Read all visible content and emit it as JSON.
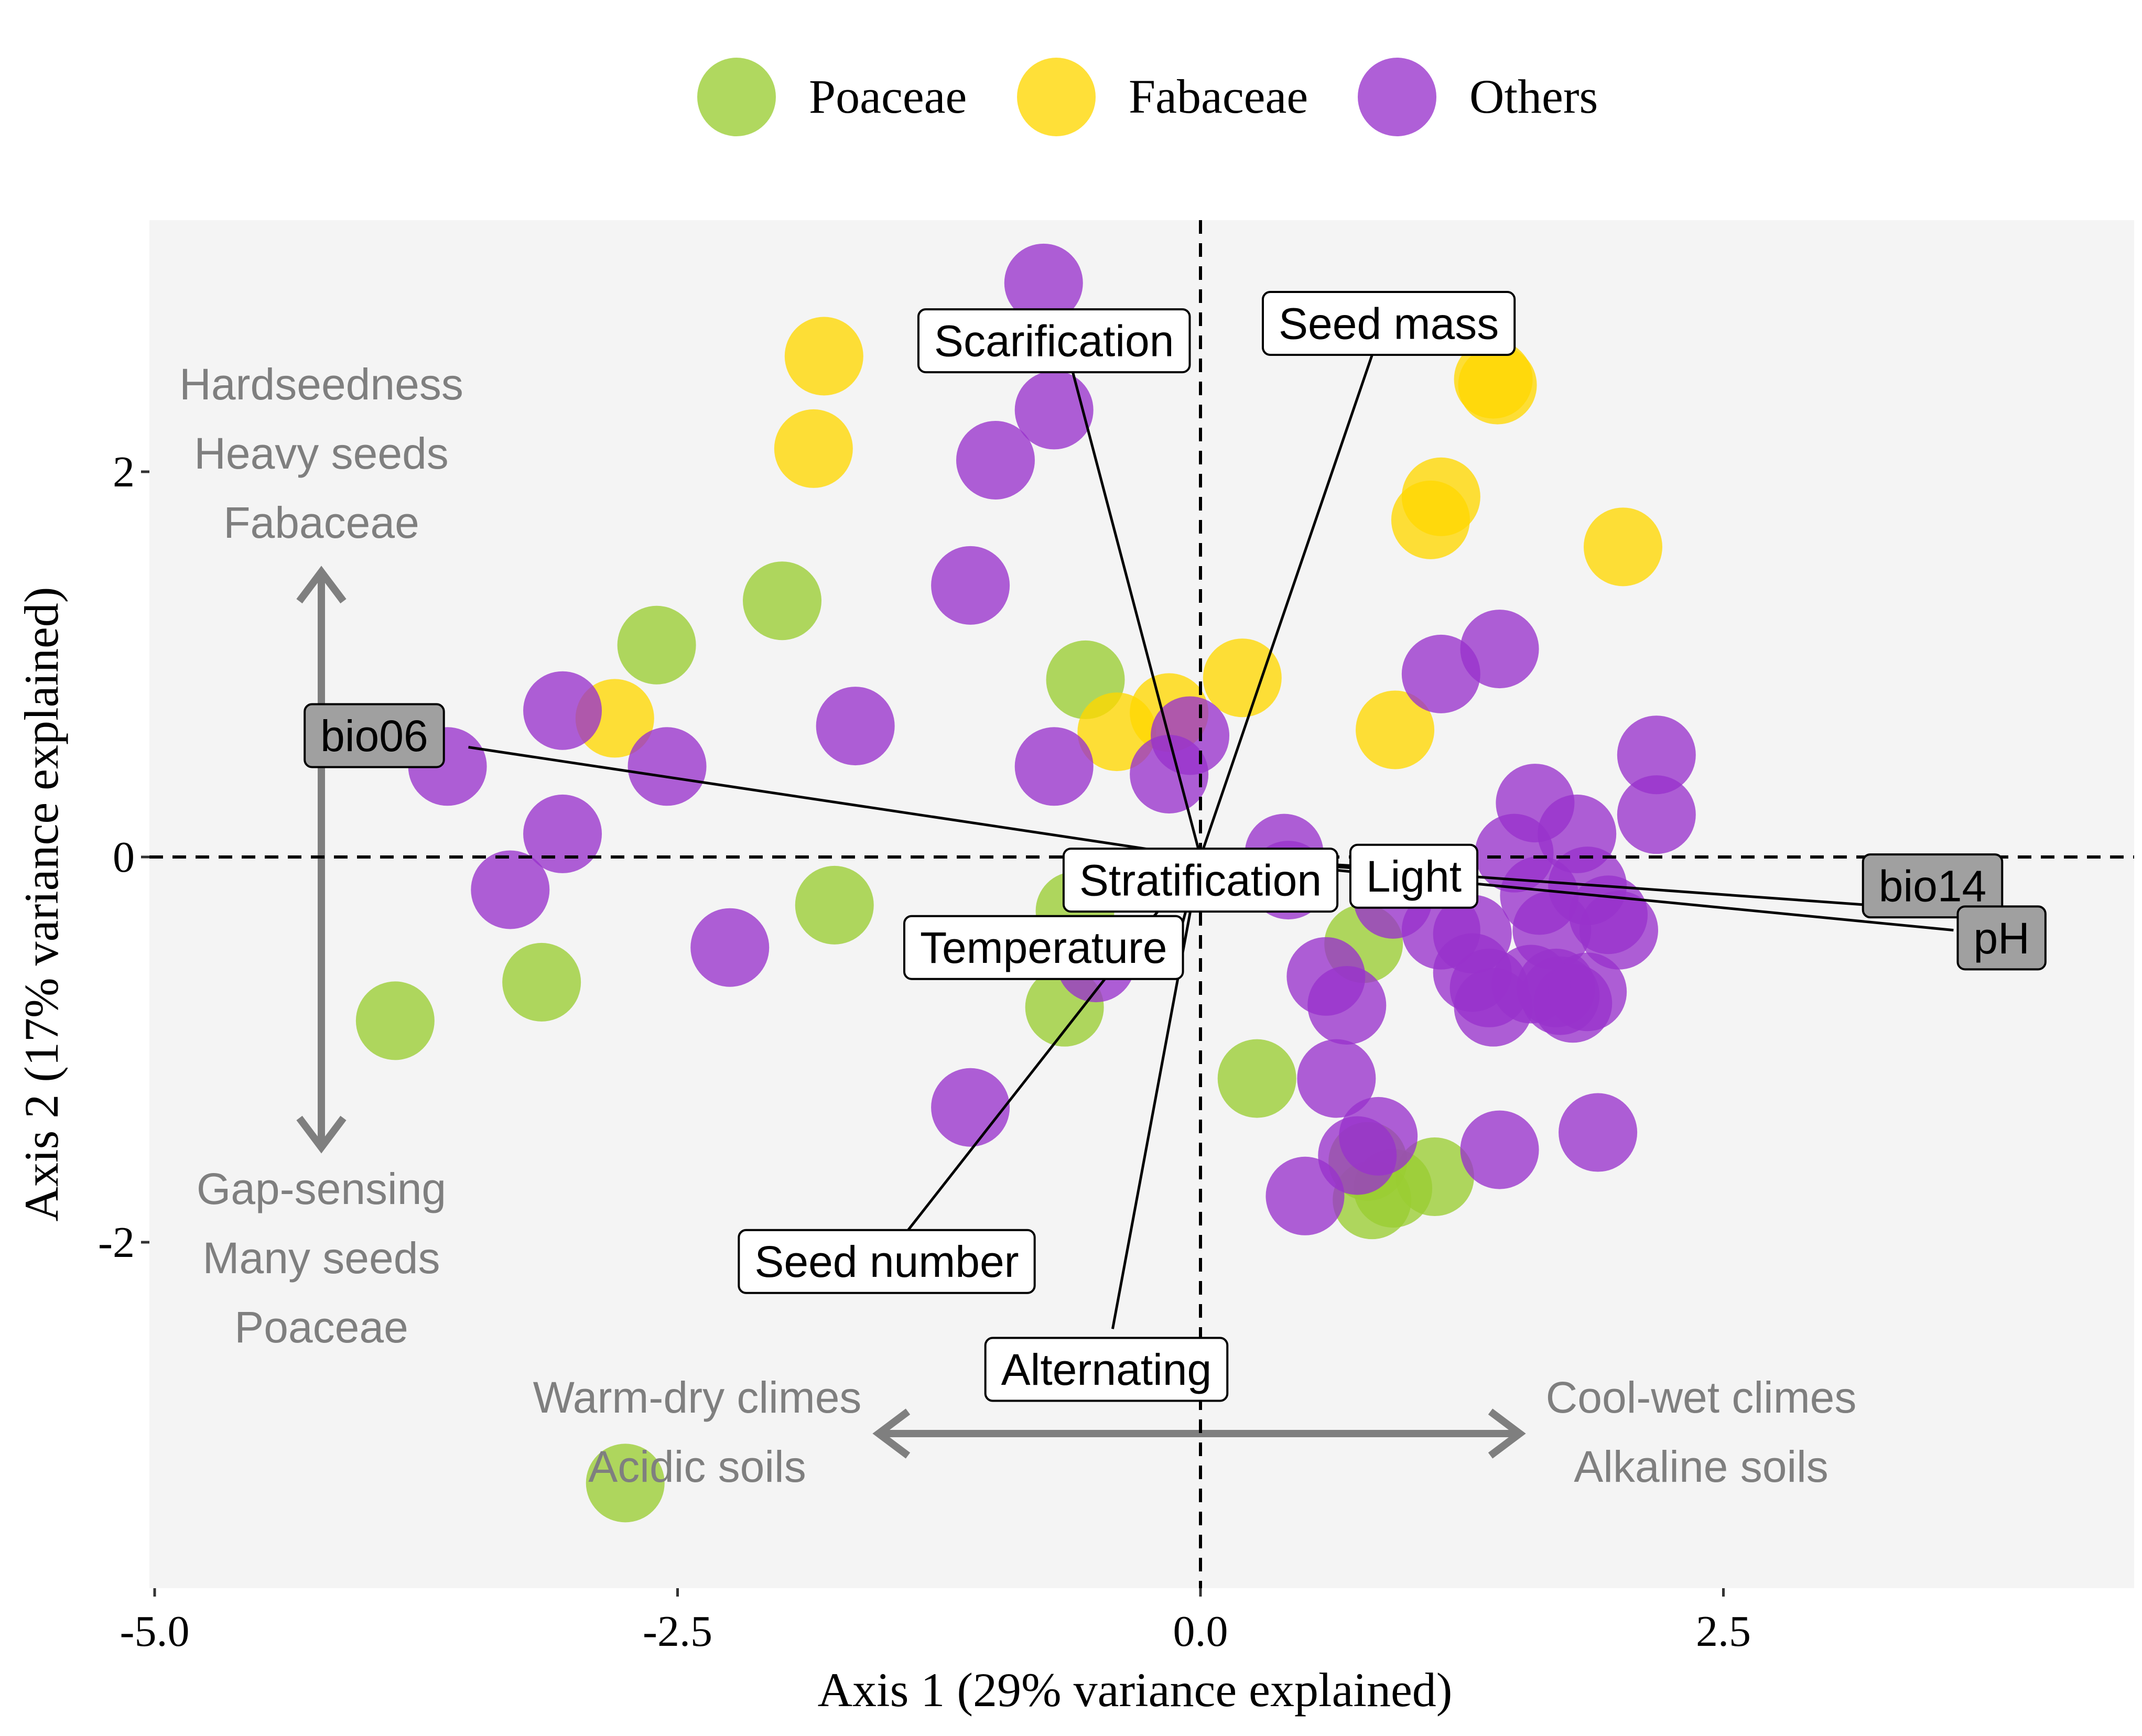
{
  "chart_data": {
    "type": "scatter",
    "xlabel": "Axis 1 (29% variance explained)",
    "ylabel": "Axis 2 (17% variance explained)",
    "xlim": [
      -5.0,
      4.5
    ],
    "ylim": [
      -3.8,
      3.35
    ],
    "x_ticks": [
      {
        "value": -5.0,
        "label": "-5.0"
      },
      {
        "value": -2.5,
        "label": "-2.5"
      },
      {
        "value": 0.0,
        "label": "0.0"
      },
      {
        "value": 2.5,
        "label": "2.5"
      }
    ],
    "y_ticks": [
      {
        "value": 2,
        "label": "2"
      },
      {
        "value": 0,
        "label": "0"
      },
      {
        "value": -2,
        "label": "-2"
      }
    ],
    "grid": false,
    "legend_position": "top",
    "reference_lines": {
      "x": 0,
      "y": 0,
      "style": "dashed"
    },
    "series": [
      {
        "name": "Poaceae",
        "color": "#9ACD32",
        "points": [
          [
            -3.85,
            -0.85
          ],
          [
            -3.15,
            -0.65
          ],
          [
            -2.6,
            1.1
          ],
          [
            -2.0,
            1.33
          ],
          [
            -1.75,
            -0.25
          ],
          [
            -0.55,
            0.92
          ],
          [
            -0.65,
            -0.78
          ],
          [
            -0.6,
            -0.28
          ],
          [
            0.27,
            -1.15
          ],
          [
            0.78,
            -0.45
          ],
          [
            0.8,
            -1.58
          ],
          [
            0.92,
            -1.72
          ],
          [
            0.82,
            -1.78
          ],
          [
            1.12,
            -1.66
          ],
          [
            -2.75,
            -3.25
          ]
        ]
      },
      {
        "name": "Fabaceae",
        "color": "#FFD700",
        "points": [
          [
            -1.8,
            2.6
          ],
          [
            -1.85,
            2.12
          ],
          [
            -2.8,
            0.72
          ],
          [
            -0.4,
            0.65
          ],
          [
            -0.15,
            0.75
          ],
          [
            0.2,
            0.93
          ],
          [
            0.93,
            0.66
          ],
          [
            1.15,
            1.87
          ],
          [
            1.1,
            1.75
          ],
          [
            1.4,
            2.48
          ],
          [
            1.42,
            2.45
          ],
          [
            2.02,
            1.61
          ]
        ]
      },
      {
        "name": "Others",
        "color": "#9932CC",
        "points": [
          [
            -0.75,
            2.98
          ],
          [
            -0.7,
            2.32
          ],
          [
            -0.98,
            2.06
          ],
          [
            -1.1,
            1.41
          ],
          [
            -1.65,
            0.68
          ],
          [
            -2.55,
            0.47
          ],
          [
            -3.05,
            0.76
          ],
          [
            -3.6,
            0.47
          ],
          [
            -3.05,
            0.12
          ],
          [
            -3.3,
            -0.17
          ],
          [
            -2.25,
            -0.47
          ],
          [
            -0.7,
            0.47
          ],
          [
            -0.15,
            0.43
          ],
          [
            -0.05,
            0.63
          ],
          [
            -1.1,
            -1.3
          ],
          [
            -0.5,
            -0.55
          ],
          [
            0.4,
            0.02
          ],
          [
            0.42,
            -0.12
          ],
          [
            0.6,
            -0.62
          ],
          [
            0.7,
            -0.77
          ],
          [
            0.65,
            -1.15
          ],
          [
            0.85,
            -1.45
          ],
          [
            0.75,
            -1.55
          ],
          [
            0.5,
            -1.76
          ],
          [
            0.92,
            -0.22
          ],
          [
            1.15,
            -0.38
          ],
          [
            1.3,
            -0.6
          ],
          [
            1.38,
            -0.68
          ],
          [
            1.4,
            -0.78
          ],
          [
            1.43,
            -1.52
          ],
          [
            1.43,
            1.08
          ],
          [
            1.15,
            0.95
          ],
          [
            1.6,
            0.28
          ],
          [
            1.5,
            0.02
          ],
          [
            1.62,
            -0.2
          ],
          [
            1.68,
            -0.38
          ],
          [
            1.7,
            -0.68
          ],
          [
            1.72,
            -0.72
          ],
          [
            1.78,
            -0.76
          ],
          [
            1.85,
            -0.7
          ],
          [
            1.85,
            -0.15
          ],
          [
            1.8,
            0.12
          ],
          [
            1.95,
            -0.3
          ],
          [
            2.0,
            -0.38
          ],
          [
            1.9,
            -1.43
          ],
          [
            2.18,
            0.53
          ],
          [
            2.18,
            0.22
          ],
          [
            1.58,
            -0.66
          ],
          [
            1.3,
            -0.4
          ]
        ]
      }
    ],
    "vectors": [
      {
        "label": "Scarification",
        "type": "trait",
        "end": [
          -0.65,
          2.68
        ],
        "label_pos": [
          -0.7,
          2.68
        ]
      },
      {
        "label": "Seed mass",
        "type": "trait",
        "end": [
          0.85,
          2.7
        ],
        "label_pos": [
          0.9,
          2.77
        ]
      },
      {
        "label": "bio06",
        "type": "environment",
        "end": [
          -3.5,
          0.57
        ],
        "label_pos": [
          -3.95,
          0.63
        ]
      },
      {
        "label": "Stratification",
        "type": "trait",
        "end": [
          -0.08,
          -0.05
        ],
        "label_pos": [
          0.0,
          -0.12
        ]
      },
      {
        "label": "Light",
        "type": "trait",
        "end": [
          0.8,
          -0.05
        ],
        "label_pos": [
          1.02,
          -0.1
        ]
      },
      {
        "label": "Temperature",
        "type": "trait",
        "end": [
          -0.1,
          -0.4
        ],
        "label_pos": [
          -0.75,
          -0.47
        ]
      },
      {
        "label": "bio14",
        "type": "environment",
        "end": [
          3.2,
          -0.25
        ],
        "label_pos": [
          3.5,
          -0.15
        ]
      },
      {
        "label": "pH",
        "type": "environment",
        "end": [
          3.6,
          -0.38
        ],
        "label_pos": [
          3.83,
          -0.42
        ]
      },
      {
        "label": "Seed number",
        "type": "trait",
        "end": [
          -1.4,
          -1.94
        ],
        "label_pos": [
          -1.5,
          -2.1
        ]
      },
      {
        "label": "Alternating",
        "type": "trait",
        "end": [
          -0.42,
          -2.45
        ],
        "label_pos": [
          -0.45,
          -2.66
        ]
      }
    ],
    "annotations": {
      "top_left": [
        "Hardseedness",
        "Heavy seeds",
        "Fabaceae"
      ],
      "bottom_left": [
        "Gap-sensing",
        "Many seeds",
        "Poaceae"
      ],
      "bottom_center_left": [
        "Warm-dry climes",
        "Acidic soils"
      ],
      "bottom_center_right": [
        "Cool-wet climes",
        "Alkaline soils"
      ]
    }
  }
}
